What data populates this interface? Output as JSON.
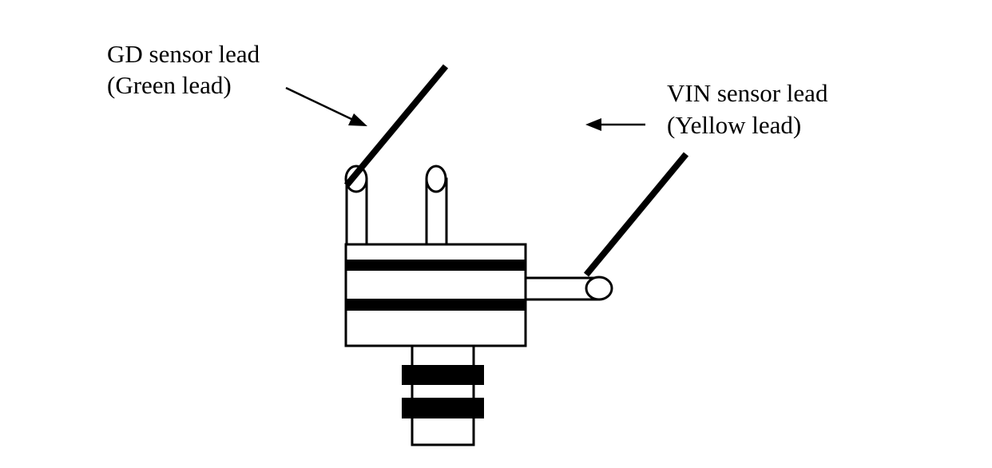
{
  "labels": {
    "gd_line1": "GD sensor lead",
    "gd_line2": "(Green lead)",
    "vin_line1": "VIN sensor lead",
    "vin_line2": "(Yellow lead)"
  },
  "colors": {
    "ink": "#000000",
    "background": "#ffffff"
  }
}
